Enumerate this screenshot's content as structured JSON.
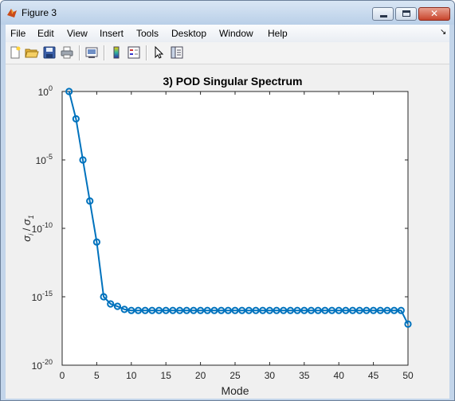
{
  "window": {
    "title": "Figure 3"
  },
  "menu": {
    "items": [
      "File",
      "Edit",
      "View",
      "Insert",
      "Tools",
      "Desktop",
      "Window",
      "Help"
    ]
  },
  "toolbar": {
    "icons": [
      "new-figure-icon",
      "open-file-icon",
      "save-icon",
      "print-icon",
      "link-plot-icon",
      "insert-colorbar-icon",
      "insert-legend-icon",
      "edit-plot-icon",
      "property-inspector-icon"
    ]
  },
  "colors": {
    "line": "#0072BD",
    "axes_bg": "#ffffff",
    "figure_bg": "#f0f0f0"
  },
  "chart_data": {
    "type": "line",
    "title": "3) POD Singular Spectrum",
    "xlabel": "Mode",
    "ylabel": "σ_i / σ_1",
    "ylabel_parts": {
      "main": "σ",
      "sub": "i",
      "sep": " / ",
      "main2": "σ",
      "sub2": "1"
    },
    "xlim": [
      0,
      50
    ],
    "ylim": [
      1e-20,
      1
    ],
    "yscale": "log",
    "xticks": [
      "0",
      "5",
      "10",
      "15",
      "20",
      "25",
      "30",
      "35",
      "40",
      "45",
      "50"
    ],
    "yticks": [
      {
        "base": "10",
        "exp": "0"
      },
      {
        "base": "10",
        "exp": "-5"
      },
      {
        "base": "10",
        "exp": "-10"
      },
      {
        "base": "10",
        "exp": "-15"
      },
      {
        "base": "10",
        "exp": "-20"
      }
    ],
    "marker": "circle",
    "grid": false,
    "series": [
      {
        "x": [
          1,
          2,
          3,
          4,
          5,
          6,
          7,
          8,
          9,
          10,
          11,
          12,
          13,
          14,
          15,
          16,
          17,
          18,
          19,
          20,
          21,
          22,
          23,
          24,
          25,
          26,
          27,
          28,
          29,
          30,
          31,
          32,
          33,
          34,
          35,
          36,
          37,
          38,
          39,
          40,
          41,
          42,
          43,
          44,
          45,
          46,
          47,
          48,
          49,
          50
        ],
        "y": [
          1,
          0.01,
          1e-05,
          1e-08,
          1e-11,
          1e-15,
          3e-16,
          2e-16,
          1.2e-16,
          1e-16,
          1e-16,
          1e-16,
          1e-16,
          1e-16,
          1e-16,
          1e-16,
          1e-16,
          1e-16,
          1e-16,
          1e-16,
          1e-16,
          1e-16,
          1e-16,
          1e-16,
          1e-16,
          1e-16,
          1e-16,
          1e-16,
          1e-16,
          1e-16,
          1e-16,
          1e-16,
          1e-16,
          1e-16,
          1e-16,
          1e-16,
          1e-16,
          1e-16,
          1e-16,
          1e-16,
          1e-16,
          1e-16,
          1e-16,
          1e-16,
          1e-16,
          1e-16,
          1e-16,
          1e-16,
          1e-16,
          1e-17
        ]
      }
    ]
  }
}
